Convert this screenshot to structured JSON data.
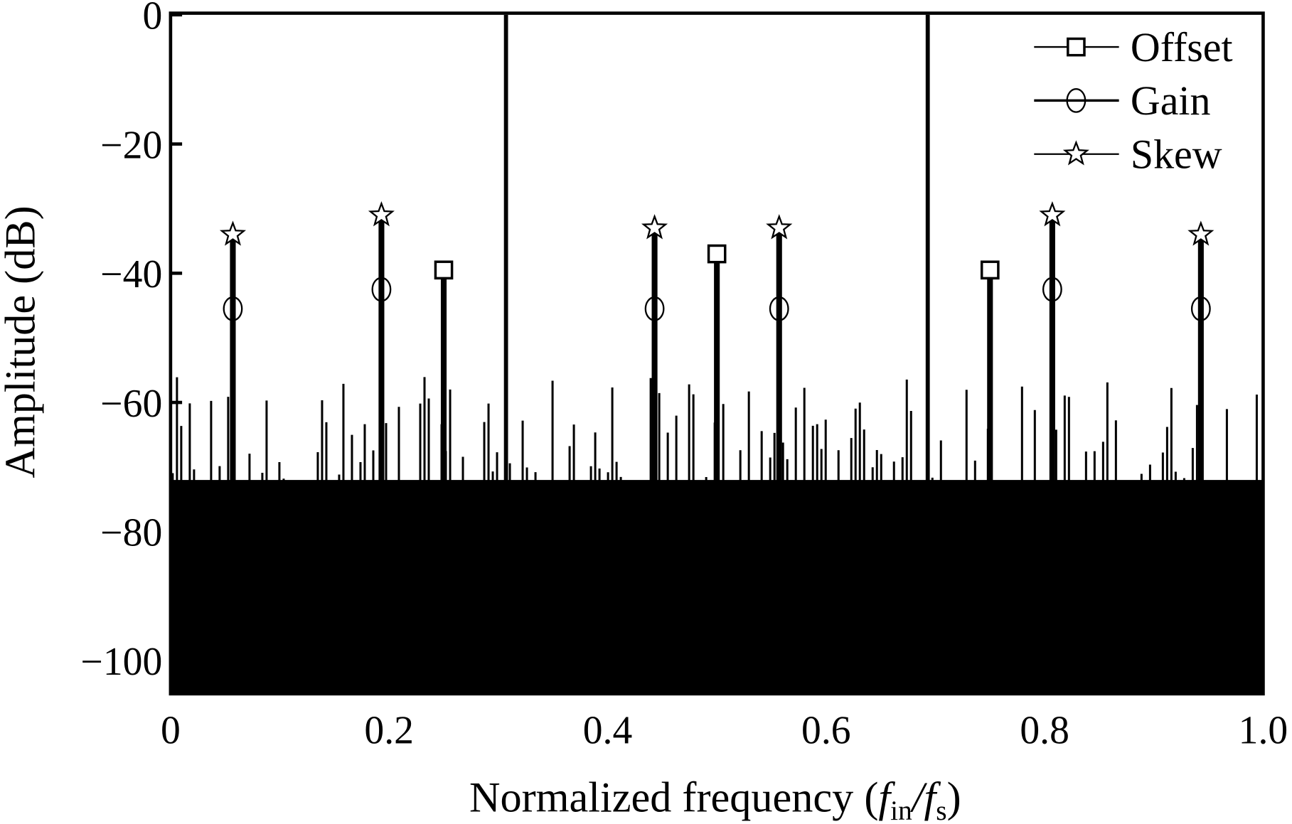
{
  "chart_data": {
    "type": "line",
    "subtype": "spectrum-stem",
    "title": "",
    "xlabel": "Normalized frequency (f_in/f_s)",
    "xlabel_parts": {
      "main": "Normalized frequency (",
      "f1": "f",
      "sub1": "in",
      "slash": "/",
      "f2": "f",
      "sub2": "s",
      "close": ")"
    },
    "ylabel": "Amplitude (dB)",
    "xlim": [
      0,
      1.0
    ],
    "ylim": [
      -105,
      0
    ],
    "xticks": [
      0,
      0.2,
      0.4,
      0.6,
      0.8,
      1.0
    ],
    "xtick_labels": [
      "0",
      "0.2",
      "0.4",
      "0.6",
      "0.8",
      "1.0"
    ],
    "yticks": [
      0,
      -20,
      -40,
      -60,
      -80,
      -100
    ],
    "ytick_labels": [
      "0",
      "−20",
      "−40",
      "−60",
      "−80",
      "−100"
    ],
    "grid": false,
    "legend_position": "top-right",
    "fundamentals": {
      "x": [
        0.307,
        0.693
      ],
      "y": [
        0,
        0
      ]
    },
    "noise_floor": {
      "bins": 256,
      "base_range": [
        -75,
        -72
      ],
      "spur_range": [
        -75,
        -56
      ]
    },
    "series": [
      {
        "name": "Offset",
        "marker": "square",
        "x": [
          0.25,
          0.5,
          0.75
        ],
        "y": [
          -39.5,
          -37,
          -39.5
        ]
      },
      {
        "name": "Gain",
        "marker": "circle",
        "x": [
          0.057,
          0.193,
          0.443,
          0.557,
          0.807,
          0.943
        ],
        "y": [
          -45.5,
          -42.5,
          -45.5,
          -45.5,
          -42.5,
          -45.5
        ]
      },
      {
        "name": "Skew",
        "marker": "star",
        "x": [
          0.057,
          0.193,
          0.443,
          0.557,
          0.807,
          0.943
        ],
        "y": [
          -34,
          -31,
          -33,
          -33,
          -31,
          -34
        ]
      }
    ]
  }
}
